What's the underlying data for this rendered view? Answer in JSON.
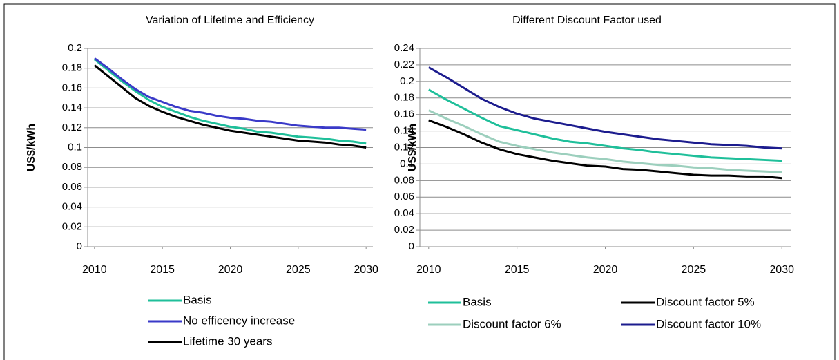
{
  "chart_data": [
    {
      "type": "line",
      "title": "Variation of Lifetime and Efficiency",
      "y_label": "US$/kWh",
      "x": [
        2010,
        2011,
        2012,
        2013,
        2014,
        2015,
        2016,
        2017,
        2018,
        2019,
        2020,
        2021,
        2022,
        2023,
        2024,
        2025,
        2026,
        2027,
        2028,
        2029,
        2030
      ],
      "xlim": [
        2009.5,
        2030.5
      ],
      "xticks": [
        2010,
        2015,
        2020,
        2025,
        2030
      ],
      "ylim": [
        0,
        0.2
      ],
      "yticks": [
        0,
        0.02,
        0.04,
        0.06,
        0.08,
        0.1,
        0.12,
        0.14,
        0.16,
        0.18,
        0.2
      ],
      "grid": true,
      "series": [
        {
          "name": "Basis",
          "color": "#1fbf9a",
          "values": [
            0.189,
            0.178,
            0.167,
            0.157,
            0.148,
            0.141,
            0.136,
            0.131,
            0.127,
            0.124,
            0.121,
            0.119,
            0.116,
            0.115,
            0.113,
            0.111,
            0.11,
            0.109,
            0.107,
            0.106,
            0.104
          ]
        },
        {
          "name": "No efficency increase",
          "color": "#3a3ac8",
          "values": [
            0.19,
            0.18,
            0.169,
            0.159,
            0.151,
            0.146,
            0.141,
            0.137,
            0.135,
            0.132,
            0.13,
            0.129,
            0.127,
            0.126,
            0.124,
            0.122,
            0.121,
            0.12,
            0.12,
            0.119,
            0.118
          ]
        },
        {
          "name": "Lifetime 30 years",
          "color": "#000000",
          "values": [
            0.183,
            0.172,
            0.161,
            0.15,
            0.142,
            0.136,
            0.131,
            0.127,
            0.123,
            0.12,
            0.117,
            0.115,
            0.113,
            0.111,
            0.109,
            0.107,
            0.106,
            0.105,
            0.103,
            0.102,
            0.1
          ]
        }
      ]
    },
    {
      "type": "line",
      "title": "Different Discount Factor used",
      "y_label": "US$/kWh",
      "x": [
        2010,
        2011,
        2012,
        2013,
        2014,
        2015,
        2016,
        2017,
        2018,
        2019,
        2020,
        2021,
        2022,
        2023,
        2024,
        2025,
        2026,
        2027,
        2028,
        2029,
        2030
      ],
      "xlim": [
        2009.5,
        2030.5
      ],
      "xticks": [
        2010,
        2015,
        2020,
        2025,
        2030
      ],
      "ylim": [
        0,
        0.24
      ],
      "yticks": [
        0,
        0.02,
        0.04,
        0.06,
        0.08,
        0.1,
        0.12,
        0.14,
        0.16,
        0.18,
        0.2,
        0.22,
        0.24
      ],
      "grid": true,
      "series": [
        {
          "name": "Basis",
          "color": "#1fbf9a",
          "values": [
            0.19,
            0.178,
            0.167,
            0.156,
            0.146,
            0.141,
            0.136,
            0.131,
            0.127,
            0.125,
            0.122,
            0.119,
            0.117,
            0.114,
            0.112,
            0.11,
            0.108,
            0.107,
            0.106,
            0.105,
            0.104
          ]
        },
        {
          "name": "Discount factor 5%",
          "color": "#000000",
          "values": [
            0.153,
            0.145,
            0.136,
            0.126,
            0.118,
            0.112,
            0.108,
            0.104,
            0.101,
            0.098,
            0.097,
            0.094,
            0.093,
            0.091,
            0.089,
            0.087,
            0.086,
            0.086,
            0.085,
            0.085,
            0.083
          ]
        },
        {
          "name": "Discount factor 6%",
          "color": "#9ccfbd",
          "values": [
            0.165,
            0.155,
            0.146,
            0.136,
            0.127,
            0.122,
            0.118,
            0.114,
            0.111,
            0.108,
            0.106,
            0.103,
            0.101,
            0.099,
            0.098,
            0.096,
            0.095,
            0.093,
            0.092,
            0.091,
            0.09
          ]
        },
        {
          "name": "Discount factor 10%",
          "color": "#1c1c8e",
          "values": [
            0.217,
            0.205,
            0.192,
            0.179,
            0.169,
            0.161,
            0.155,
            0.151,
            0.147,
            0.143,
            0.139,
            0.136,
            0.133,
            0.13,
            0.128,
            0.126,
            0.124,
            0.123,
            0.122,
            0.12,
            0.119
          ]
        }
      ]
    }
  ]
}
